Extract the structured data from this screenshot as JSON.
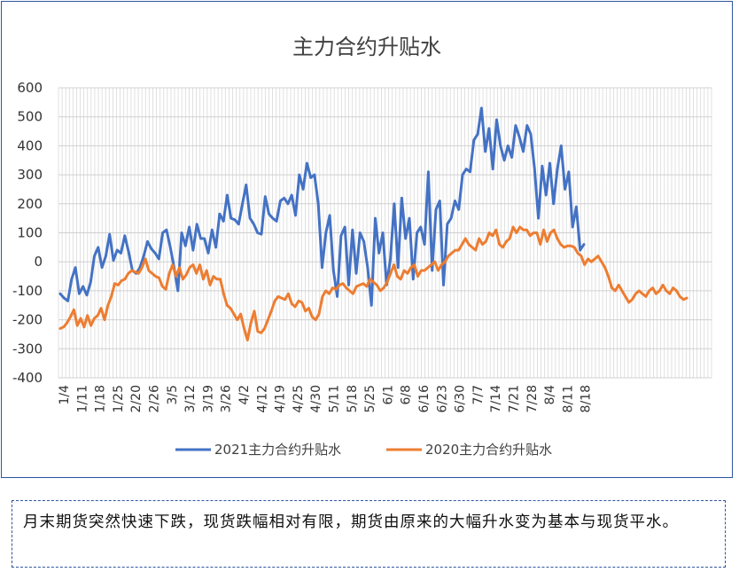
{
  "chart_data": {
    "type": "line",
    "title": "主力合约升贴水",
    "xlabel": "",
    "ylabel": "",
    "ylim": [
      -400,
      600
    ],
    "yticks": [
      600,
      500,
      400,
      300,
      200,
      100,
      0,
      -100,
      -200,
      -300,
      -400
    ],
    "grid": true,
    "legend_position": "bottom",
    "xtick_labels": [
      "1/4",
      "1/11",
      "1/18",
      "1/25",
      "2/20",
      "2/26",
      "3/5",
      "3/12",
      "3/19",
      "3/26",
      "4/2",
      "4/12",
      "4/19",
      "4/25",
      "4/30",
      "5/11",
      "5/18",
      "5/25",
      "6/1",
      "6/8",
      "6/16",
      "6/23",
      "6/30",
      "7/7",
      "7/14",
      "7/21",
      "7/28",
      "8/4",
      "8/11",
      "8/18"
    ],
    "series": [
      {
        "name": "2021主力合约升贴水",
        "color": "#4472c4",
        "values": [
          -110,
          -125,
          -135,
          -60,
          -20,
          -110,
          -85,
          -115,
          -70,
          20,
          50,
          -20,
          20,
          95,
          5,
          40,
          30,
          90,
          35,
          -30,
          -40,
          -20,
          20,
          70,
          45,
          30,
          10,
          100,
          110,
          50,
          -20,
          -100,
          100,
          55,
          120,
          40,
          130,
          80,
          80,
          30,
          110,
          50,
          165,
          140,
          230,
          150,
          145,
          130,
          200,
          265,
          150,
          130,
          100,
          95,
          225,
          165,
          150,
          140,
          210,
          220,
          200,
          230,
          160,
          300,
          250,
          340,
          290,
          300,
          200,
          -20,
          100,
          160,
          -30,
          -120,
          90,
          120,
          -80,
          110,
          -40,
          100,
          70,
          -20,
          -150,
          150,
          30,
          100,
          -80,
          10,
          200,
          -20,
          220,
          80,
          150,
          -60,
          100,
          120,
          60,
          310,
          -30,
          180,
          210,
          -80,
          130,
          150,
          210,
          180,
          300,
          320,
          310,
          420,
          440,
          530,
          380,
          460,
          320,
          490,
          400,
          350,
          400,
          360,
          470,
          430,
          380,
          470,
          440,
          320,
          150,
          330,
          230,
          340,
          200,
          320,
          400,
          250,
          310,
          120,
          190,
          40,
          60
        ]
      },
      {
        "name": "2020主力合约升贴水",
        "color": "#ed7d31",
        "values": [
          -230,
          -225,
          -210,
          -190,
          -165,
          -220,
          -195,
          -225,
          -185,
          -220,
          -195,
          -185,
          -160,
          -200,
          -150,
          -120,
          -75,
          -80,
          -65,
          -60,
          -40,
          -30,
          -35,
          -40,
          -20,
          10,
          -30,
          -40,
          -50,
          -55,
          -85,
          -95,
          -40,
          -10,
          -50,
          -20,
          -60,
          -45,
          -20,
          -10,
          -40,
          -10,
          -60,
          -30,
          -80,
          -50,
          -60,
          -60,
          -110,
          -150,
          -160,
          -180,
          -200,
          -180,
          -230,
          -270,
          -210,
          -170,
          -240,
          -245,
          -230,
          -200,
          -170,
          -135,
          -120,
          -125,
          -130,
          -110,
          -145,
          -155,
          -135,
          -140,
          -170,
          -160,
          -190,
          -200,
          -180,
          -120,
          -100,
          -110,
          -90,
          -95,
          -80,
          -75,
          -90,
          -100,
          -110,
          -85,
          -80,
          -75,
          -85,
          -60,
          -70,
          -80,
          -100,
          -90,
          -70,
          -40,
          -10,
          -50,
          -60,
          -30,
          -40,
          -20,
          -10,
          -50,
          -30,
          -30,
          -20,
          -10,
          0,
          -30,
          -10,
          0,
          20,
          30,
          40,
          40,
          60,
          80,
          60,
          50,
          40,
          80,
          60,
          70,
          100,
          90,
          110,
          60,
          50,
          70,
          80,
          120,
          100,
          120,
          110,
          110,
          90,
          100,
          100,
          60,
          110,
          70,
          100,
          110,
          80,
          60,
          50,
          55,
          55,
          50,
          30,
          20,
          -10,
          10,
          0,
          10,
          20,
          0,
          -20,
          -50,
          -90,
          -100,
          -80,
          -100,
          -120,
          -140,
          -130,
          -110,
          -100,
          -110,
          -120,
          -100,
          -90,
          -110,
          -100,
          -80,
          -100,
          -110,
          -90,
          -100,
          -120,
          -130,
          -125
        ]
      }
    ]
  },
  "note": {
    "text": "月末期货突然快速下跌，现货跌幅相对有限，期货由原来的大幅升水变为基本与现货平水。"
  }
}
